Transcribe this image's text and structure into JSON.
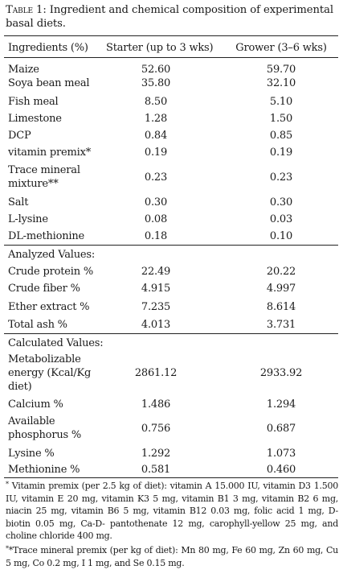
{
  "caption": {
    "label": "Table 1:",
    "text": "Ingredient and chemical composition of experimental basal diets."
  },
  "header": {
    "col1": "Ingredients (%)",
    "col2": "Starter (up to 3 wks)",
    "col3": "Grower (3–6 wks)"
  },
  "ingredients": [
    {
      "name": "Maize",
      "starter": "52.60",
      "grower": "59.70"
    },
    {
      "name": "Soya bean meal",
      "starter": "35.80",
      "grower": "32.10"
    },
    {
      "name": "Fish meal",
      "starter": "8.50",
      "grower": "5.10"
    },
    {
      "name": "Limestone",
      "starter": "1.28",
      "grower": "1.50"
    },
    {
      "name": "DCP",
      "starter": "0.84",
      "grower": "0.85"
    },
    {
      "name": "vitamin premix*",
      "starter": "0.19",
      "grower": "0.19"
    },
    {
      "name": "Trace mineral mixture**",
      "starter": "0.23",
      "grower": "0.23"
    },
    {
      "name": "Salt",
      "starter": "0.30",
      "grower": "0.30"
    },
    {
      "name": "L-lysine",
      "starter": "0.08",
      "grower": "0.03"
    },
    {
      "name": "DL-methionine",
      "starter": "0.18",
      "grower": "0.10"
    }
  ],
  "analyzed": {
    "heading": "Analyzed Values:",
    "rows": [
      {
        "name": "Crude protein %",
        "starter": "22.49",
        "grower": "20.22"
      },
      {
        "name": "Crude fiber %",
        "starter": "4.915",
        "grower": "4.997"
      },
      {
        "name": "Ether extract %",
        "starter": "7.235",
        "grower": "8.614"
      },
      {
        "name": "Total ash %",
        "starter": "4.013",
        "grower": "3.731"
      }
    ]
  },
  "calculated": {
    "heading": "Calculated Values:",
    "rows": [
      {
        "name": "Metabolizable energy (Kcal/Kg diet)",
        "starter": "2861.12",
        "grower": "2933.92"
      },
      {
        "name": "Calcium %",
        "starter": "1.486",
        "grower": "1.294"
      },
      {
        "name": "Available phosphorus %",
        "starter": "0.756",
        "grower": "0.687"
      },
      {
        "name": "Lysine %",
        "starter": "1.292",
        "grower": "1.073"
      },
      {
        "name": "Methionine %",
        "starter": "0.581",
        "grower": "0.460"
      }
    ]
  },
  "footnotes": {
    "vitamin": "Vitamin premix (per 2.5 kg of diet): vitamin A 15.000 IU, vitamin D3 1.500 IU, vitamin E 20 mg, vitamin K3 5 mg, vitamin B1 3 mg, vitamin B2 6 mg, niacin 25 mg, vitamin B6 5 mg, vitamin B12 0.03 mg, folic acid 1 mg, D-biotin 0.05 mg, Ca-D- pantothenate 12 mg, carophyll-yellow 25 mg, and choline chloride 400 mg.",
    "mineral": "*Trace mineral premix (per kg of diet): Mn 80 mg, Fe 60 mg, Zn 60 mg, Cu 5 mg, Co 0.2 mg, I 1 mg, and Se 0.15 mg."
  }
}
